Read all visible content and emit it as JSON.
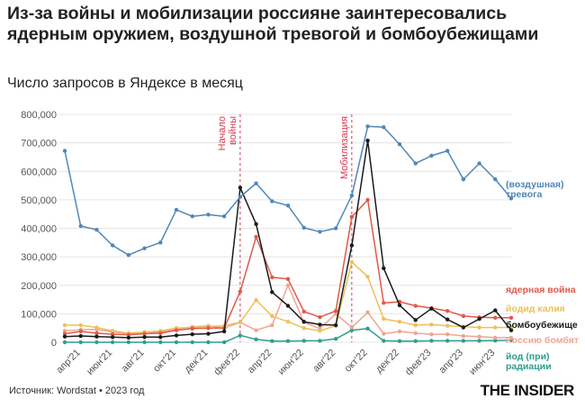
{
  "header": {
    "title": "Из-за войны и мобилизации россияне заинтересовались ядерным оружием, воздушной тревогой и бомбоубежищами",
    "subtitle": "Число запросов в Яндексе в месяц"
  },
  "footer": {
    "source": "Источник: Wordstat • 2023 год",
    "brand": "THE INSIDER"
  },
  "chart_data": {
    "type": "line",
    "x": [
      "мар'21",
      "апр'21",
      "май'21",
      "июн'21",
      "июл'21",
      "авг'21",
      "сен'21",
      "окт'21",
      "ноя'21",
      "дек'21",
      "янв'22",
      "фев'22",
      "мар'22",
      "апр'22",
      "май'22",
      "июн'22",
      "июл'22",
      "авг'22",
      "сен'22",
      "окт'22",
      "ноя'22",
      "дек'22",
      "янв'23",
      "фев'23",
      "мар'23",
      "апр'23",
      "май'23",
      "июн'23",
      "июл'23"
    ],
    "x_tick_labels": [
      {
        "index": 1,
        "label": "апр'21"
      },
      {
        "index": 3,
        "label": "июн'21"
      },
      {
        "index": 5,
        "label": "авг'21"
      },
      {
        "index": 7,
        "label": "окт'21"
      },
      {
        "index": 9,
        "label": "дек'21"
      },
      {
        "index": 11,
        "label": "фев'22"
      },
      {
        "index": 13,
        "label": "апр'22"
      },
      {
        "index": 15,
        "label": "июн'22"
      },
      {
        "index": 17,
        "label": "авг'22"
      },
      {
        "index": 19,
        "label": "окт'22"
      },
      {
        "index": 21,
        "label": "дек'22"
      },
      {
        "index": 23,
        "label": "фев'23"
      },
      {
        "index": 25,
        "label": "апр'23"
      },
      {
        "index": 27,
        "label": "июн'23"
      }
    ],
    "ylim": [
      0,
      800000
    ],
    "y_ticks": [
      0,
      100000,
      200000,
      300000,
      400000,
      500000,
      600000,
      700000,
      800000
    ],
    "y_tick_labels": [
      "0",
      "100,000",
      "200,000",
      "300,000",
      "400,000",
      "500,000",
      "600,000",
      "700,000",
      "800,000"
    ],
    "grid": true,
    "events": [
      {
        "index": 11,
        "label": "Начало войны",
        "label_lines": [
          "Начало",
          "войны"
        ],
        "color": "#d63b4c"
      },
      {
        "index": 18,
        "label": "Мобилизация",
        "label_lines": [
          "Мобилизация"
        ],
        "color": "#d63b4c"
      }
    ],
    "series": [
      {
        "name": "(воздушная) тревога",
        "label_lines": [
          "(воздушная)",
          "тревога"
        ],
        "color": "#4f87b8",
        "values": [
          672000,
          408000,
          395000,
          340000,
          306000,
          330000,
          350000,
          465000,
          442000,
          448000,
          442000,
          510000,
          558000,
          495000,
          480000,
          402000,
          388000,
          400000,
          515000,
          758000,
          755000,
          695000,
          628000,
          655000,
          672000,
          572000,
          628000,
          572000,
          505000
        ]
      },
      {
        "name": "ядерная война",
        "label_lines": [
          "ядерная война"
        ],
        "color": "#e0594a",
        "values": [
          30000,
          38000,
          32000,
          28000,
          26000,
          30000,
          32000,
          42000,
          48000,
          50000,
          50000,
          178000,
          370000,
          228000,
          222000,
          108000,
          88000,
          110000,
          440000,
          500000,
          138000,
          142000,
          128000,
          120000,
          110000,
          92000,
          88000,
          86000,
          86000
        ]
      },
      {
        "name": "йодид калия",
        "label_lines": [
          "йодид калия"
        ],
        "color": "#ecc05a",
        "values": [
          60000,
          60000,
          52000,
          40000,
          32000,
          36000,
          40000,
          50000,
          52000,
          56000,
          58000,
          70000,
          148000,
          92000,
          72000,
          50000,
          40000,
          58000,
          282000,
          230000,
          82000,
          72000,
          60000,
          62000,
          58000,
          55000,
          52000,
          52000,
          52000
        ]
      },
      {
        "name": "бомбоубежище",
        "label_lines": [
          "бомбоубежище"
        ],
        "color": "#1b1b1b",
        "values": [
          20000,
          22000,
          20000,
          18000,
          16000,
          18000,
          18000,
          24000,
          28000,
          30000,
          38000,
          543000,
          415000,
          176000,
          128000,
          72000,
          62000,
          60000,
          340000,
          708000,
          260000,
          130000,
          78000,
          118000,
          80000,
          52000,
          82000,
          112000,
          42000
        ]
      },
      {
        "name": "Россию бомбят",
        "label_lines": [
          "Россию бомбят"
        ],
        "color": "#f0a493",
        "values": [
          40000,
          44000,
          45000,
          36000,
          30000,
          30000,
          36000,
          46000,
          54000,
          58000,
          50000,
          70000,
          42000,
          60000,
          200000,
          70000,
          48000,
          100000,
          52000,
          105000,
          30000,
          38000,
          32000,
          28000,
          28000,
          22000,
          20000,
          16000,
          16000
        ]
      },
      {
        "name": "йод (при) радиации",
        "label_lines": [
          "йод (при)",
          "радиации"
        ],
        "color": "#2e9e8e",
        "values": [
          0,
          0,
          0,
          0,
          0,
          0,
          0,
          0,
          0,
          0,
          0,
          24000,
          10000,
          4000,
          4000,
          5000,
          5000,
          12000,
          42000,
          48000,
          5000,
          4000,
          4000,
          5000,
          5000,
          5000,
          5000,
          6000,
          7000
        ]
      }
    ]
  }
}
